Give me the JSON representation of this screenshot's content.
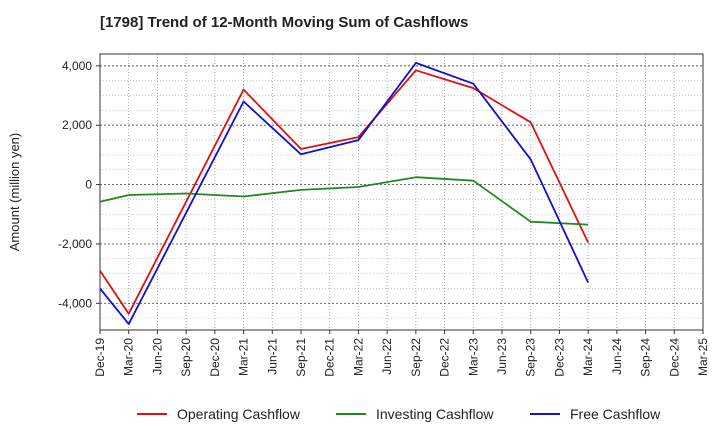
{
  "chart_data": {
    "type": "line",
    "title": "[1798]  Trend of 12-Month Moving Sum of Cashflows",
    "ylabel": "Amount (million yen)",
    "xlabel": "",
    "ylim": [
      -4900,
      4400
    ],
    "yticks": [
      4000,
      2000,
      0,
      -2000,
      -4000
    ],
    "ytick_labels": [
      "4,000",
      "2,000",
      "0",
      "-2,000",
      "-4,000"
    ],
    "categories": [
      "Dec-19",
      "Mar-20",
      "Jun-20",
      "Sep-20",
      "Dec-20",
      "Mar-21",
      "Jun-21",
      "Sep-21",
      "Dec-21",
      "Mar-22",
      "Jun-22",
      "Sep-22",
      "Dec-22",
      "Mar-23",
      "Jun-23",
      "Sep-23",
      "Dec-23",
      "Mar-24",
      "Jun-24",
      "Sep-24",
      "Dec-24",
      "Mar-25"
    ],
    "grid": true,
    "legend_position": "bottom",
    "series": [
      {
        "name": "Operating Cashflow",
        "color": "#dd1111",
        "values": [
          -2900,
          -4350,
          null,
          null,
          null,
          3200,
          null,
          1200,
          null,
          1600,
          null,
          3850,
          null,
          3250,
          null,
          2100,
          null,
          -1950,
          null,
          null,
          null,
          null
        ]
      },
      {
        "name": "Investing Cashflow",
        "color": "#228822",
        "values": [
          -580,
          -350,
          null,
          -300,
          null,
          -400,
          null,
          -180,
          null,
          -80,
          null,
          250,
          null,
          130,
          null,
          -1250,
          null,
          -1350,
          null,
          null,
          null,
          null
        ]
      },
      {
        "name": "Free Cashflow",
        "color": "#1111cc",
        "values": [
          -3500,
          -4700,
          null,
          null,
          null,
          2800,
          null,
          1020,
          null,
          1500,
          null,
          4100,
          null,
          3400,
          null,
          850,
          null,
          -3300,
          null,
          null,
          null,
          null
        ]
      }
    ]
  }
}
